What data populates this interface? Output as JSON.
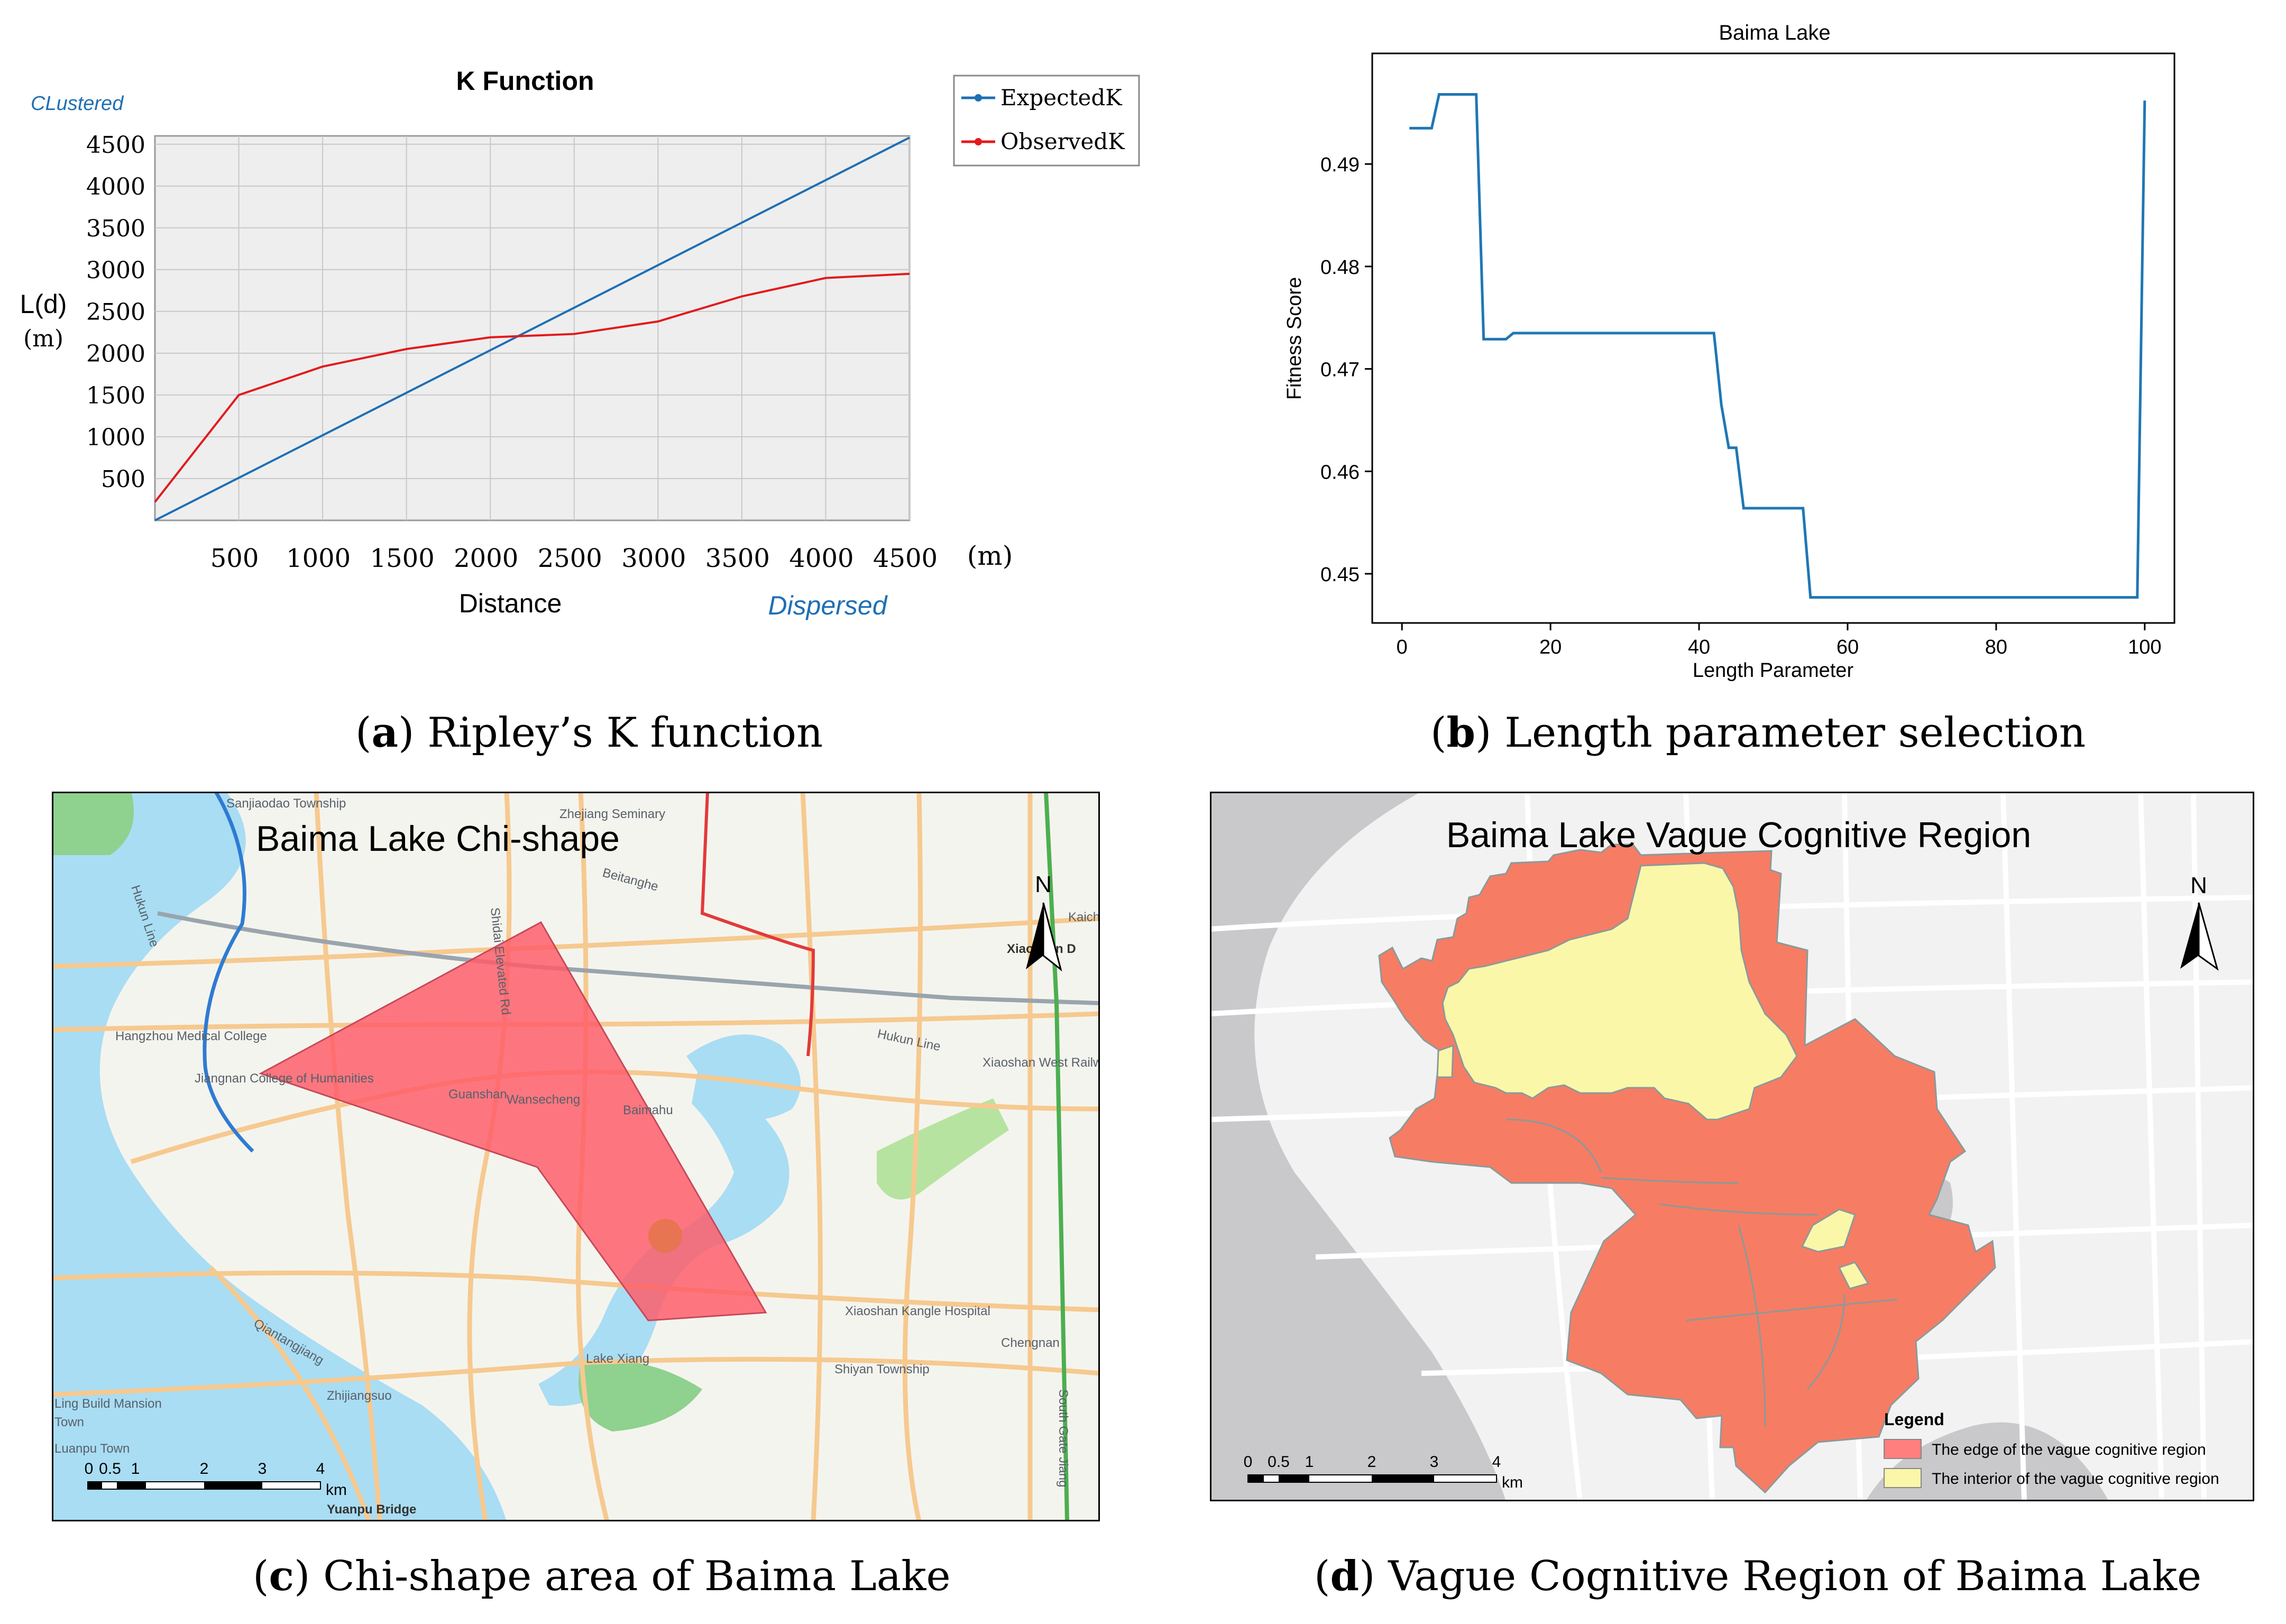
{
  "captions": {
    "a": {
      "letter": "a",
      "text": "Ripley’s K function"
    },
    "b": {
      "letter": "b",
      "text": "Length parameter selection"
    },
    "c": {
      "letter": "c",
      "text": "Chi-shape area of Baima Lake"
    },
    "d": {
      "letter": "d",
      "text": "Vague Cognitive Region of Baima Lake"
    }
  },
  "chart_data": [
    {
      "type": "line",
      "title": "K Function",
      "xlabel": "Distance",
      "xunit": "(m)",
      "ylabel": "L(d)",
      "yunit": "(m)",
      "annotations": {
        "top_left": "CLustered",
        "bottom_right": "Dispersed"
      },
      "xlim": [
        0,
        4500
      ],
      "ylim": [
        0,
        4600
      ],
      "xticks": [
        500,
        1000,
        1500,
        2000,
        2500,
        3000,
        3500,
        4000,
        4500
      ],
      "yticks": [
        500,
        1000,
        1500,
        2000,
        2500,
        3000,
        3500,
        4000,
        4500
      ],
      "legend_position": "outside-top-right",
      "grid": true,
      "series": [
        {
          "name": "ExpectedK",
          "color": "#1f6fb4",
          "x": [
            0,
            4500
          ],
          "y": [
            0,
            4580
          ]
        },
        {
          "name": "ObservedK",
          "color": "#e31a1c",
          "x": [
            0,
            500,
            1000,
            1500,
            2000,
            2500,
            3000,
            3500,
            4000,
            4500
          ],
          "y": [
            220,
            1500,
            1840,
            2050,
            2190,
            2230,
            2380,
            2680,
            2900,
            2950
          ]
        }
      ]
    },
    {
      "type": "line",
      "title": "Baima Lake",
      "xlabel": "Length Parameter",
      "ylabel": "Fitness Score",
      "xlim": [
        -4,
        104
      ],
      "ylim": [
        0.4452,
        0.5008
      ],
      "xticks": [
        0,
        20,
        40,
        60,
        80,
        100
      ],
      "yticks": [
        0.45,
        0.46,
        0.47,
        0.48,
        0.49
      ],
      "grid": false,
      "series": [
        {
          "name": "",
          "color": "#1f77b4",
          "x": [
            1,
            4,
            5,
            10,
            11,
            14,
            15,
            42,
            43,
            44,
            45,
            46,
            54,
            55,
            99,
            100
          ],
          "y": [
            0.4935,
            0.4935,
            0.4968,
            0.4968,
            0.4729,
            0.4729,
            0.4735,
            0.4735,
            0.4665,
            0.4623,
            0.4623,
            0.4564,
            0.4564,
            0.4477,
            0.4477,
            0.4962
          ]
        }
      ]
    }
  ],
  "map_c": {
    "title": "Baima Lake Chi-shape",
    "north": "N",
    "scale_labels": [
      "0",
      "0.5",
      "1",
      "2",
      "3",
      "4"
    ],
    "scale_unit": "km",
    "polygon_color": "#ff5a66",
    "place_labels": [
      "Sanjiaodao Township",
      "Hukun Line",
      "Zhejiang Seminary",
      "Beitanghe",
      "Shidai Elevated Rd",
      "Kaiche",
      "Xiaoshan D",
      "Hangzhou Medical College",
      "Jiangnan College of Humanities",
      "Guanshan",
      "Wansecheng",
      "Baimahu",
      "Hukun Line",
      "Xiaoshan West Railway Sta",
      "Xiaoshan Kangle Hospital",
      "Chengnan",
      "Qiantangjiang",
      "Shiyan Township",
      "Lake Xiang",
      "Zhijiangsuo",
      "Ling Build Mansion",
      "Town",
      "Luanpu Town",
      "Yuanpu Bridge",
      "South Gate Jiang"
    ]
  },
  "map_d": {
    "title": "Baima Lake Vague Cognitive Region",
    "north": "N",
    "scale_labels": [
      "0",
      "0.5",
      "1",
      "2",
      "3",
      "4"
    ],
    "scale_unit": "km",
    "legend_title": "Legend",
    "legend_items": [
      {
        "label": "The edge of the vague cognitive region",
        "color": "#f77c64"
      },
      {
        "label": "The interior of the vague cognitive region",
        "color": "#fbf7a8"
      }
    ]
  }
}
